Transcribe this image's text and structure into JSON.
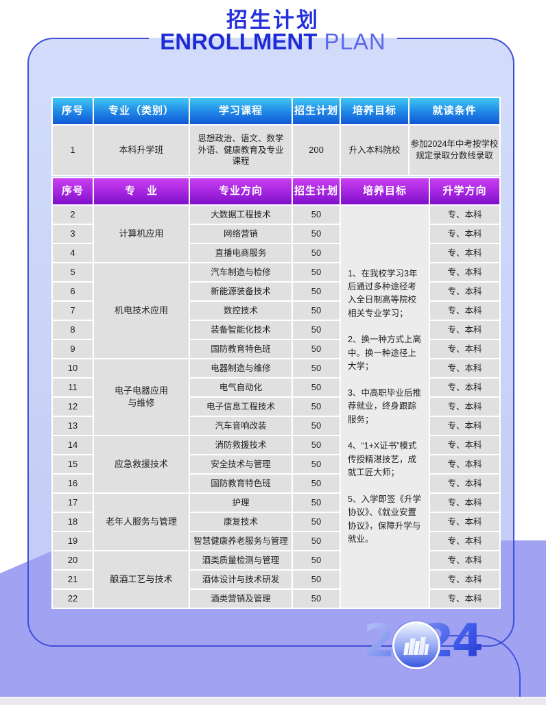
{
  "title": {
    "zh": "招生计划",
    "en_bold": "ENROLLMENT",
    "en_light": " PLAN"
  },
  "year_badge": {
    "year": "2024",
    "icon": "city-buildings-icon"
  },
  "colors": {
    "title_blue": "#2431dd",
    "en_bold_blue": "#1e2cd6",
    "en_light_blue": "#5a68e6",
    "header1_gradient_top": "#3fc6f4",
    "header1_gradient_bottom": "#1257d5",
    "header2_gradient_top": "#c93ff0",
    "header2_gradient_bottom": "#7e10c9",
    "cell_gray": "#e0e0e0",
    "goal_cell_gray": "#ececec",
    "card_fill": "#cdd7f8",
    "card_border": "#3d4fd8",
    "purple_background": "#a2a2f2",
    "year_blue": "#2b42cf"
  },
  "prep_table": {
    "headers": [
      "序号",
      "专业（类别）",
      "学习课程",
      "招生计划",
      "培养目标",
      "就读条件"
    ],
    "row": {
      "no": "1",
      "major": "本科升学班",
      "courses": "思想政治、语文、数学\n外语、健康教育及专业\n课程",
      "plan": "200",
      "goal": "升入本科院校",
      "condition": "参加2024年中考按学校\n规定录取分数线录取"
    }
  },
  "plan_table": {
    "headers": [
      "序号",
      "专　业",
      "专业方向",
      "招生计划",
      "培养目标",
      "升学方向"
    ],
    "rows": [
      {
        "no": "2",
        "direction": "大数据工程技术",
        "plan": "50",
        "pathway": "专、本科"
      },
      {
        "no": "3",
        "direction": "网络营销",
        "plan": "50",
        "pathway": "专、本科"
      },
      {
        "no": "4",
        "direction": "直播电商服务",
        "plan": "50",
        "pathway": "专、本科"
      },
      {
        "no": "5",
        "direction": "汽车制造与检修",
        "plan": "50",
        "pathway": "专、本科"
      },
      {
        "no": "6",
        "direction": "新能源装备技术",
        "plan": "50",
        "pathway": "专、本科"
      },
      {
        "no": "7",
        "direction": "数控技术",
        "plan": "50",
        "pathway": "专、本科"
      },
      {
        "no": "8",
        "direction": "装备智能化技术",
        "plan": "50",
        "pathway": "专、本科"
      },
      {
        "no": "9",
        "direction": "国防教育特色班",
        "plan": "50",
        "pathway": "专、本科"
      },
      {
        "no": "10",
        "direction": "电器制造与维修",
        "plan": "50",
        "pathway": "专、本科"
      },
      {
        "no": "11",
        "direction": "电气自动化",
        "plan": "50",
        "pathway": "专、本科"
      },
      {
        "no": "12",
        "direction": "电子信息工程技术",
        "plan": "50",
        "pathway": "专、本科"
      },
      {
        "no": "13",
        "direction": "汽车音响改装",
        "plan": "50",
        "pathway": "专、本科"
      },
      {
        "no": "14",
        "direction": "消防救援技术",
        "plan": "50",
        "pathway": "专、本科"
      },
      {
        "no": "15",
        "direction": "安全技术与管理",
        "plan": "50",
        "pathway": "专、本科"
      },
      {
        "no": "16",
        "direction": "国防教育特色班",
        "plan": "50",
        "pathway": "专、本科"
      },
      {
        "no": "17",
        "direction": "护理",
        "plan": "50",
        "pathway": "专、本科"
      },
      {
        "no": "18",
        "direction": "康复技术",
        "plan": "50",
        "pathway": "专、本科"
      },
      {
        "no": "19",
        "direction": "智慧健康养老服务与管理",
        "plan": "50",
        "pathway": "专、本科"
      },
      {
        "no": "20",
        "direction": "酒类质量检测与管理",
        "plan": "50",
        "pathway": "专、本科"
      },
      {
        "no": "21",
        "direction": "酒体设计与技术研发",
        "plan": "50",
        "pathway": "专、本科"
      },
      {
        "no": "22",
        "direction": "酒类营销及管理",
        "plan": "50",
        "pathway": "专、本科"
      }
    ],
    "groups": [
      {
        "label": "计算机应用",
        "start": 2,
        "end": 4
      },
      {
        "label": "机电技术应用",
        "start": 5,
        "end": 9
      },
      {
        "label": "电子电器应用\n与维修",
        "start": 10,
        "end": 13
      },
      {
        "label": "应急救援技术",
        "start": 14,
        "end": 16
      },
      {
        "label": "老年人服务与管理",
        "start": 17,
        "end": 19
      },
      {
        "label": "酿酒工艺与技术",
        "start": 20,
        "end": 22
      }
    ],
    "goal_text": "1、在我校学习3年后通过多种途径考入全日制高等院校相关专业学习；\n\n2、换一种方式上高中。换一种途径上大学；\n\n3、中高职毕业后推荐就业，终身跟踪服务；\n\n4、“1+X证书”模式传授精湛技艺，成就工匠大师；\n\n5、入学即签《升学协议》、《就业安置协议》，保障升学与就业。"
  }
}
